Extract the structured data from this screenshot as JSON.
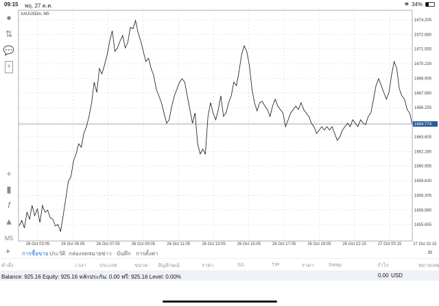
{
  "status": {
    "time": "09:15",
    "date": "พฤ. 27 ต.ค.",
    "battery": "34%"
  },
  "toolbar": {
    "icons": [
      "account-icon",
      "trade-icon",
      "chat-icon",
      "new-order-icon",
      "crosshair-icon",
      "candlestick-icon",
      "indicator-icon",
      "objects-icon"
    ],
    "timeframe": "M5"
  },
  "chart_data": {
    "type": "line",
    "title": "XAUUSDm, M5",
    "current_price": "1664.774",
    "ylim": [
      1654.18,
      1675.07
    ],
    "y_ticks": [
      "1674.205",
      "1672.880",
      "1671.555",
      "1670.230",
      "1668.905",
      "1667.580",
      "1666.255",
      "1664.930",
      "1663.605",
      "1662.280",
      "1660.955",
      "1659.630",
      "1658.305",
      "1656.980",
      "1655.655"
    ],
    "x_ticks": [
      "26 Oct 03:05",
      "26 Oct 05:05",
      "26 Oct 07:05",
      "26 Oct 09:05",
      "26 Oct 11:05",
      "26 Oct 13:05",
      "26 Oct 15:05",
      "26 Oct 17:05",
      "26 Oct 19:05",
      "26 Oct 22:15",
      "27 Oct 00:15",
      "27 Oct 02:15"
    ],
    "grid": true,
    "values": [
      1655.54,
      1656.04,
      1655.36,
      1656.78,
      1656.16,
      1657.4,
      1656.47,
      1657.09,
      1655.85,
      1657.4,
      1656.78,
      1656.97,
      1656.29,
      1656.16,
      1655.54,
      1655.67,
      1655.05,
      1656.47,
      1658.02,
      1659.57,
      1660.0,
      1661.43,
      1662.05,
      1662.98,
      1662.67,
      1663.91,
      1664.53,
      1665.46,
      1666.7,
      1668.56,
      1667.63,
      1669.8,
      1669.31,
      1670.11,
      1671.04,
      1672.28,
      1673.21,
      1671.35,
      1671.66,
      1672.28,
      1672.78,
      1671.66,
      1672.16,
      1673.52,
      1673.4,
      1674.14,
      1673.03,
      1672.28,
      1671.35,
      1670.42,
      1670.73,
      1669.8,
      1669.18,
      1667.94,
      1667.32,
      1666.7,
      1665.77,
      1664.84,
      1665.15,
      1666.39,
      1667.32,
      1667.94,
      1668.56,
      1668.87,
      1668.56,
      1667.32,
      1666.08,
      1664.84,
      1665.77,
      1662.98,
      1662.05,
      1662.49,
      1662.05,
      1665.46,
      1666.7,
      1665.77,
      1665.15,
      1666.08,
      1667.32,
      1665.46,
      1665.77,
      1666.7,
      1667.32,
      1668.56,
      1668.25,
      1669.49,
      1671.04,
      1671.85,
      1671.35,
      1670.11,
      1667.94,
      1666.7,
      1665.96,
      1666.7,
      1666.83,
      1666.39,
      1666.08,
      1665.46,
      1666.39,
      1667.01,
      1666.39,
      1666.08,
      1665.77,
      1664.53,
      1665.15,
      1665.77,
      1666.08,
      1666.39,
      1666.08,
      1666.7,
      1666.08,
      1665.77,
      1665.46,
      1664.84,
      1664.53,
      1663.91,
      1664.22,
      1664.53,
      1664.22,
      1664.53,
      1664.22,
      1664.53,
      1663.91,
      1663.29,
      1663.6,
      1664.22,
      1664.53,
      1664.84,
      1664.53,
      1665.15,
      1664.84,
      1664.53,
      1665.15,
      1664.84,
      1664.72,
      1665.46,
      1665.77,
      1667.01,
      1668.25,
      1668.87,
      1668.25,
      1667.63,
      1667.01,
      1667.63,
      1669.18,
      1670.42,
      1669.8,
      1667.94,
      1667.32,
      1667.01,
      1666.08,
      1665.77,
      1664.77
    ]
  },
  "tabs": {
    "add": "+",
    "items": [
      "การซื้อขาย",
      "ประวัติ",
      "กล่องจดหมาย",
      "ข่าว",
      "บันทึก",
      "การตั้งค่า"
    ],
    "active_color": "#1e6fd9"
  },
  "table": {
    "headers": [
      "คำสั่ง",
      "เวลา",
      "ประเภท",
      "ขนาด",
      "สัญลักษณ์",
      "ราคา",
      "S/L",
      "T/P",
      "ราคา",
      "Swap",
      "กำไร",
      "หมายเหตุ"
    ]
  },
  "balance": {
    "text": "Balance: 925.16 Equity: 925.16 หลักประกัน: 0.00 ฟรี: 925.16 Level: 0.00%",
    "profit": "0.00",
    "currency": "USD"
  }
}
